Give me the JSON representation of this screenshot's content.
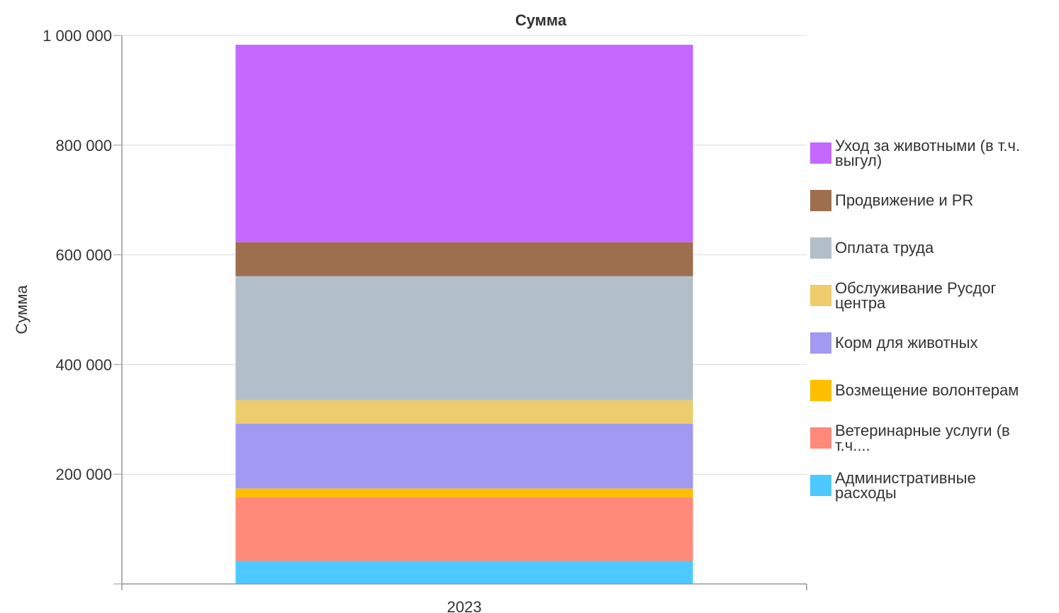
{
  "chart_data": {
    "type": "bar",
    "stacked": true,
    "title": "Сумма",
    "xlabel": "",
    "ylabel": "Сумма",
    "categories": [
      "2023"
    ],
    "ylim": [
      0,
      1000000
    ],
    "yticks": [
      200000,
      400000,
      600000,
      800000,
      1000000
    ],
    "ytick_labels": [
      "200 000",
      "400 000",
      "600 000",
      "800 000",
      "1 000 000"
    ],
    "grid": true,
    "legend_position": "right",
    "series": [
      {
        "name": "Административные расходы",
        "label_lines": [
          "Административные",
          "расходы"
        ],
        "color": "#4DC9FF",
        "values": [
          42000
        ]
      },
      {
        "name": "Ветеринарные услуги (в т.ч....",
        "label_lines": [
          "Ветеринарные услуги (в",
          "т.ч...."
        ],
        "color": "#FF8A7A",
        "values": [
          116000
        ]
      },
      {
        "name": "Возмещение волонтерам",
        "label_lines": [
          "Возмещение волонтерам"
        ],
        "color": "#FFBF00",
        "values": [
          16000
        ]
      },
      {
        "name": "Корм для животных",
        "label_lines": [
          "Корм для животных"
        ],
        "color": "#A199F2",
        "values": [
          118000
        ]
      },
      {
        "name": "Обслуживание Русдог центра",
        "label_lines": [
          "Обслуживание Русдог",
          "центра"
        ],
        "color": "#ECCC6B",
        "values": [
          43000
        ]
      },
      {
        "name": "Оплата труда",
        "label_lines": [
          "Оплата труда"
        ],
        "color": "#B2BFCA",
        "values": [
          226000
        ]
      },
      {
        "name": "Продвижение и PR",
        "label_lines": [
          "Продвижение и PR"
        ],
        "color": "#9E6F4E",
        "values": [
          62000
        ]
      },
      {
        "name": "Уход за животными (в т.ч. выгул)",
        "label_lines": [
          "Уход за животными (в т.ч.",
          "выгул)"
        ],
        "color": "#C468FE",
        "values": [
          360000
        ]
      }
    ]
  }
}
